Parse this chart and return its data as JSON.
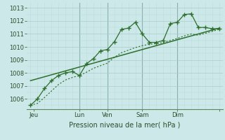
{
  "xlabel": "Pression niveau de la mer( hPa )",
  "bg_color": "#cce8e8",
  "grid_major_color": "#aacccc",
  "grid_minor_color": "#bbdddd",
  "line_color": "#2d6e2d",
  "ylim": [
    1005.2,
    1013.4
  ],
  "xlim": [
    -0.5,
    27.5
  ],
  "yticks": [
    1006,
    1007,
    1008,
    1009,
    1010,
    1011,
    1012,
    1013
  ],
  "xtick_positions": [
    0.5,
    7,
    11,
    16,
    21,
    27
  ],
  "xtick_labels": [
    "Jeu",
    "Lun",
    "Ven",
    "Sam",
    "Dim",
    ""
  ],
  "day_vlines": [
    7,
    11,
    16,
    21
  ],
  "main_x": [
    0,
    1,
    2,
    3,
    4,
    5,
    6,
    7,
    8,
    9,
    10,
    11,
    12,
    13,
    14,
    15,
    16,
    17,
    18,
    19,
    20,
    21,
    22,
    23,
    24,
    25,
    26,
    27
  ],
  "main_y": [
    1005.5,
    1006.0,
    1006.8,
    1007.4,
    1007.8,
    1008.0,
    1008.1,
    1007.8,
    1008.7,
    1009.1,
    1009.7,
    1009.8,
    1010.4,
    1011.35,
    1011.45,
    1011.9,
    1011.0,
    1010.35,
    1010.35,
    1010.5,
    1011.8,
    1011.9,
    1012.5,
    1012.55,
    1011.5,
    1011.5,
    1011.4,
    1011.4
  ],
  "dotted_x": [
    0,
    1,
    2,
    3,
    4,
    5,
    6,
    7,
    8,
    9,
    10,
    11,
    12,
    13,
    14,
    15,
    16,
    17,
    18,
    19,
    20,
    21,
    22,
    23,
    24,
    25,
    26,
    27
  ],
  "dotted_y": [
    1005.5,
    1005.65,
    1006.1,
    1006.6,
    1007.1,
    1007.45,
    1007.65,
    1007.8,
    1008.05,
    1008.35,
    1008.55,
    1008.75,
    1009.2,
    1009.55,
    1009.75,
    1009.95,
    1010.1,
    1010.2,
    1010.25,
    1010.35,
    1010.5,
    1010.65,
    1010.85,
    1011.0,
    1010.9,
    1011.05,
    1011.2,
    1011.35
  ],
  "trend_x": [
    0,
    27
  ],
  "trend_y": [
    1007.4,
    1011.45
  ]
}
